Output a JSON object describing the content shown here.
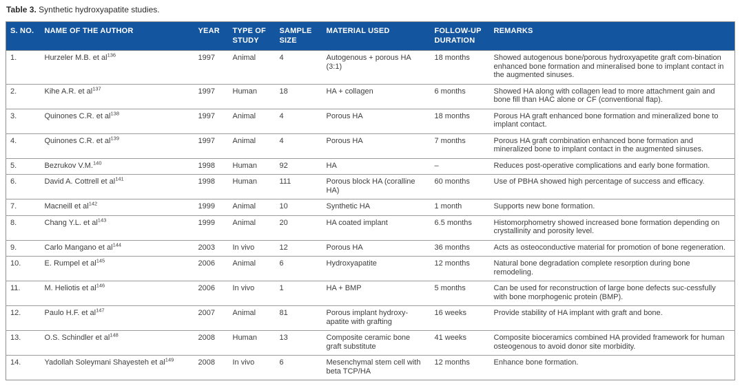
{
  "title": {
    "label": "Table 3.",
    "text": "Synthetic hydroxyapatite studies."
  },
  "colors": {
    "header_bg": "#14559f",
    "header_text": "#ffffff",
    "body_text": "#3d3d3d",
    "border": "#8f8f8f"
  },
  "table": {
    "columns": [
      "S. NO.",
      "NAME OF THE AUTHOR",
      "YEAR",
      "TYPE OF STUDY",
      "SAMPLE SIZE",
      "MATERIAL USED",
      "FOLLOW-UP DURATION",
      "REMARKS"
    ],
    "rows": [
      {
        "sno": "1.",
        "author": "Hurzeler M.B. et al",
        "ref": "136",
        "year": "1997",
        "type": "Animal",
        "sample": "4",
        "material": "Autogenous + porous HA (3:1)",
        "duration": "18 months",
        "remarks": "Showed autogenous bone/porous hydroxyapetite graft com-bination enhanced bone formation and mineralised bone to implant contact in the augmented sinuses."
      },
      {
        "sno": "2.",
        "author": "Kihe A.R. et al",
        "ref": "137",
        "year": "1997",
        "type": "Human",
        "sample": "18",
        "material": "HA + collagen",
        "duration": "6 months",
        "remarks": "Showed HA along with collagen lead to more attachment gain and bone fill than HAC alone or CF (conventional flap)."
      },
      {
        "sno": "3.",
        "author": "Quinones C.R. et al",
        "ref": "138",
        "year": "1997",
        "type": "Animal",
        "sample": "4",
        "material": "Porous HA",
        "duration": "18 months",
        "remarks": "Porous HA graft enhanced bone formation and mineralized bone to implant contact."
      },
      {
        "sno": "4.",
        "author": "Quinones C.R. et al",
        "ref": "139",
        "year": "1997",
        "type": "Animal",
        "sample": "4",
        "material": "Porous HA",
        "duration": "7 months",
        "remarks": "Porous HA graft combination enhanced bone formation and mineralized bone to implant contact in the augmented sinuses."
      },
      {
        "sno": "5.",
        "author": "Bezrukov V.M.",
        "ref": "140",
        "year": "1998",
        "type": "Human",
        "sample": "92",
        "material": "HA",
        "duration": "–",
        "remarks": "Reduces post-operative complications and early bone formation."
      },
      {
        "sno": "6.",
        "author": "David A. Cottrell et al",
        "ref": "141",
        "year": "1998",
        "type": "Human",
        "sample": "111",
        "material": "Porous block HA (coralline HA)",
        "duration": "60 months",
        "remarks": "Use of PBHA showed high percentage of success and efficacy."
      },
      {
        "sno": "7.",
        "author": "Macneill et al",
        "ref": "142",
        "year": "1999",
        "type": "Animal",
        "sample": "10",
        "material": "Synthetic HA",
        "duration": "1 month",
        "remarks": "Supports new bone formation."
      },
      {
        "sno": "8.",
        "author": "Chang Y.L. et al",
        "ref": "143",
        "year": "1999",
        "type": "Animal",
        "sample": "20",
        "material": "HA coated implant",
        "duration": "6.5 months",
        "remarks": "Histomorphometry showed increased bone formation depending on crystallinity and porosity level."
      },
      {
        "sno": "9.",
        "author": "Carlo Mangano et al",
        "ref": "144",
        "year": "2003",
        "type": "In vivo",
        "sample": "12",
        "material": "Porous HA",
        "duration": "36 months",
        "remarks": "Acts as osteoconductive material for promotion of bone regeneration."
      },
      {
        "sno": "10.",
        "author": "E. Rumpel et al",
        "ref": "145",
        "year": "2006",
        "type": "Animal",
        "sample": "6",
        "material": "Hydroxyapatite",
        "duration": "12 months",
        "remarks": "Natural bone degradation complete resorption during bone remodeling."
      },
      {
        "sno": "11.",
        "author": "M. Heliotis et al",
        "ref": "146",
        "year": "2006",
        "type": "In vivo",
        "sample": "1",
        "material": "HA + BMP",
        "duration": "5 months",
        "remarks": "Can be used for reconstruction of large bone defects suc-cessfully with bone morphogenic protein (BMP)."
      },
      {
        "sno": "12.",
        "author": "Paulo H.F. et al",
        "ref": "147",
        "year": "2007",
        "type": "Animal",
        "sample": "81",
        "material": "Porous implant hydroxy-apatite with grafting",
        "duration": "16 weeks",
        "remarks": "Provide stability of HA implant with graft and bone."
      },
      {
        "sno": "13.",
        "author": "O.S. Schindler et al",
        "ref": "148",
        "year": "2008",
        "type": "Human",
        "sample": "13",
        "material": "Composite ceramic bone graft substitute",
        "duration": "41 weeks",
        "remarks": "Composite bioceramics combined HA provided framework for human osteogenous to avoid donor site morbidity."
      },
      {
        "sno": "14.",
        "author": "Yadollah Soleymani Shayesteh et al",
        "ref": "149",
        "year": "2008",
        "type": "In vivo",
        "sample": "6",
        "material": "Mesenchymal stem cell with beta TCP/HA",
        "duration": "12 months",
        "remarks": "Enhance bone formation."
      }
    ]
  }
}
